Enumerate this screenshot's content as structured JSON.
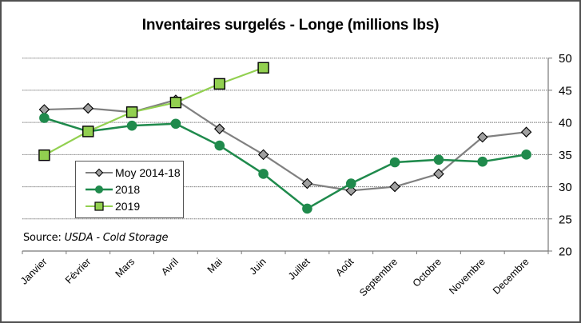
{
  "chart_data": {
    "type": "line",
    "title": "Inventaires surgelés - Longe (millions lbs)",
    "xlabel": "",
    "ylabel": "",
    "categories": [
      "Janvier",
      "Février",
      "Mars",
      "Avril",
      "Mai",
      "Juin",
      "Juillet",
      "Août",
      "Septembre",
      "Octobre",
      "Novembre",
      "Decembre"
    ],
    "ylim": [
      20,
      50
    ],
    "yticks": [
      20,
      25,
      30,
      35,
      40,
      45,
      50
    ],
    "y_axis_side": "right",
    "grid": true,
    "legend_position": "lower-left",
    "series": [
      {
        "name": "Moy 2014-18",
        "color": "#808080",
        "marker": "diamond",
        "marker_color": "#a0a0a0",
        "values": [
          42.0,
          42.2,
          41.6,
          43.5,
          39.0,
          35.0,
          30.5,
          29.4,
          30.0,
          32.0,
          37.7,
          38.5
        ]
      },
      {
        "name": "2018",
        "color": "#1f8a4c",
        "marker": "circle",
        "marker_color": "#1f8a4c",
        "values": [
          40.7,
          38.6,
          39.5,
          39.8,
          36.4,
          32.0,
          26.6,
          30.5,
          33.8,
          34.2,
          33.9,
          35.0
        ]
      },
      {
        "name": "2019",
        "color": "#92d050",
        "marker": "square",
        "marker_color": "#92d050",
        "values": [
          34.9,
          38.6,
          41.6,
          43.1,
          46.0,
          48.5,
          null,
          null,
          null,
          null,
          null,
          null
        ]
      }
    ],
    "annotation": {
      "prefix": "Source: ",
      "text": "USDA - Cold Storage"
    }
  }
}
